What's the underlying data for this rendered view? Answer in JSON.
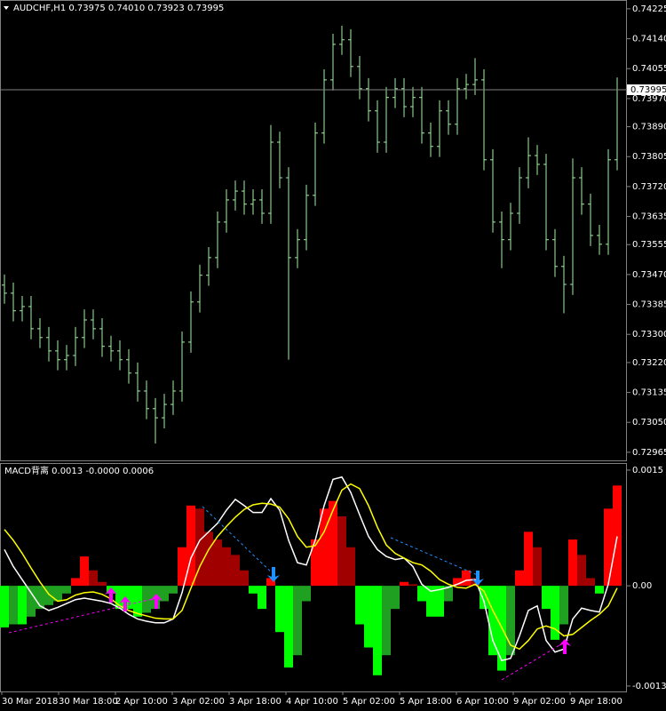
{
  "chart_data": [
    {
      "type": "ohlc",
      "title": "AUDCHF,H1  0.73975 0.74010 0.73923 0.73995",
      "color": "#a6eca6",
      "open": [
        0.7344,
        0.73417,
        0.73367,
        0.73379,
        0.73316,
        0.73291,
        0.73253,
        0.73228,
        0.7324,
        0.73291,
        0.73341,
        0.73316,
        0.73266,
        0.73253,
        0.73228,
        0.7319,
        0.73139,
        0.73089,
        0.73063,
        0.73101,
        0.73139,
        0.73278,
        0.73392,
        0.73468,
        0.73518,
        0.73619,
        0.73682,
        0.73707,
        0.7367,
        0.73682,
        0.73644,
        0.73846,
        0.73745,
        0.73518,
        0.73569,
        0.73695,
        0.73872,
        0.74023,
        0.74124,
        0.74137,
        0.74061,
        0.73998,
        0.73935,
        0.73846,
        0.73973,
        0.73998,
        0.73947,
        0.73973,
        0.73872,
        0.73834,
        0.73935,
        0.73897,
        0.73998,
        0.7401,
        0.74023,
        0.73796,
        0.73619,
        0.73569,
        0.73644,
        0.73745,
        0.73808,
        0.73783,
        0.73569,
        0.73493,
        0.73442,
        0.73745,
        0.7367,
        0.73581,
        0.73556,
        0.73796
      ],
      "high": [
        0.7347,
        0.73447,
        0.73409,
        0.73409,
        0.73346,
        0.73321,
        0.73283,
        0.7327,
        0.73321,
        0.73371,
        0.73371,
        0.73346,
        0.73296,
        0.73283,
        0.73258,
        0.7322,
        0.73169,
        0.73119,
        0.73131,
        0.73169,
        0.73308,
        0.73422,
        0.73498,
        0.73548,
        0.73649,
        0.73712,
        0.73737,
        0.73737,
        0.73712,
        0.73712,
        0.73895,
        0.73876,
        0.73775,
        0.73599,
        0.73725,
        0.73902,
        0.74053,
        0.74154,
        0.74177,
        0.74167,
        0.74091,
        0.74028,
        0.73965,
        0.74003,
        0.74028,
        0.74028,
        0.74003,
        0.74003,
        0.73902,
        0.73965,
        0.73965,
        0.74028,
        0.7404,
        0.74085,
        0.74053,
        0.73826,
        0.73649,
        0.73674,
        0.73775,
        0.7386,
        0.73838,
        0.73813,
        0.73599,
        0.73523,
        0.738,
        0.73775,
        0.737,
        0.73611,
        0.73826,
        0.7403
      ],
      "low": [
        0.73387,
        0.73337,
        0.73337,
        0.73286,
        0.73261,
        0.73223,
        0.73198,
        0.73198,
        0.7321,
        0.73261,
        0.73286,
        0.73236,
        0.73223,
        0.73198,
        0.7316,
        0.73109,
        0.73059,
        0.7299,
        0.73033,
        0.73071,
        0.73109,
        0.73248,
        0.73362,
        0.73438,
        0.73488,
        0.73589,
        0.73652,
        0.7364,
        0.7364,
        0.73614,
        0.73614,
        0.73715,
        0.73228,
        0.73488,
        0.73539,
        0.73665,
        0.73842,
        0.73993,
        0.74094,
        0.74031,
        0.73968,
        0.73905,
        0.73816,
        0.73816,
        0.73943,
        0.73917,
        0.73917,
        0.73842,
        0.73804,
        0.73804,
        0.73867,
        0.73867,
        0.73968,
        0.7398,
        0.73766,
        0.73589,
        0.73488,
        0.73539,
        0.73614,
        0.73715,
        0.73753,
        0.73539,
        0.73463,
        0.7336,
        0.73412,
        0.7364,
        0.73551,
        0.73526,
        0.73526,
        0.73766
      ],
      "close": [
        0.73417,
        0.73367,
        0.73379,
        0.73316,
        0.73291,
        0.73253,
        0.73228,
        0.7324,
        0.73291,
        0.73341,
        0.73316,
        0.73266,
        0.73253,
        0.73228,
        0.7319,
        0.73139,
        0.73089,
        0.73063,
        0.73101,
        0.73139,
        0.73278,
        0.73392,
        0.73468,
        0.73518,
        0.73619,
        0.73682,
        0.73707,
        0.7367,
        0.73682,
        0.73644,
        0.73846,
        0.73745,
        0.73518,
        0.73569,
        0.73695,
        0.73872,
        0.74023,
        0.74124,
        0.74137,
        0.74061,
        0.73998,
        0.73935,
        0.73846,
        0.73973,
        0.73998,
        0.73947,
        0.73973,
        0.73872,
        0.73834,
        0.73935,
        0.73897,
        0.73998,
        0.7401,
        0.74023,
        0.73796,
        0.73619,
        0.73569,
        0.73644,
        0.73745,
        0.73808,
        0.73783,
        0.73569,
        0.73493,
        0.73442,
        0.73745,
        0.7367,
        0.73581,
        0.73556,
        0.73796,
        0.73995
      ],
      "ylim": [
        0.72942,
        0.7425
      ],
      "yticks": [
        0.74225,
        {
          "value": 0.7414,
          "label": "0.74140"
        },
        0.74055,
        {
          "value": 0.7397,
          "label": "0.73970"
        },
        {
          "value": 0.7389,
          "label": "0.73890"
        },
        0.73805,
        {
          "value": 0.7372,
          "label": "0.73720"
        },
        0.73635,
        0.73555,
        {
          "value": 0.7347,
          "label": "0.73470"
        },
        0.73385,
        {
          "value": 0.733,
          "label": "0.73300"
        },
        {
          "value": 0.7322,
          "label": "0.73220"
        },
        0.73135,
        {
          "value": 0.7305,
          "label": "0.73050"
        },
        0.72965
      ],
      "current_price": 0.73995,
      "current_price_color": "#808080"
    },
    {
      "type": "macd",
      "title": "MACD背离 0.0013 -0.0000 0.0006",
      "histogram": [
        -0.00054,
        -0.0005,
        -0.0005,
        -0.0004,
        -0.0003,
        -0.00025,
        -0.0002,
        -0.0001,
        0.0001,
        0.00038,
        0.0002,
        5e-05,
        -0.0001,
        -0.0003,
        -0.0003,
        -0.0004,
        -0.00035,
        -0.0003,
        -0.0002,
        -0.0001,
        0.0005,
        0.00104,
        0.001,
        0.0007,
        0.0006,
        0.0005,
        0.0004,
        0.0002,
        -0.0001,
        -0.0003,
        0.0001,
        -0.0006,
        -0.00106,
        -0.0009,
        -0.0002,
        0.0006,
        0.001,
        0.0011,
        0.0009,
        0.0005,
        -0.0005,
        -0.0008,
        -0.00116,
        -0.0009,
        -0.0003,
        5e-05,
        2e-05,
        -0.0002,
        -0.0004,
        -0.0004,
        -0.0002,
        0.0001,
        0.0002,
        0.0001,
        -0.0003,
        -0.0009,
        -0.0011,
        -0.0009,
        0.0002,
        0.0007,
        0.0005,
        -0.0003,
        -0.0007,
        -0.0005,
        0.0006,
        0.0004,
        0.0001,
        -0.0001,
        0.001,
        0.0013
      ],
      "histogram_colors": {
        "positive_rising": "#ff0000",
        "positive_falling": "#a00000",
        "negative_falling": "#00ff00",
        "negative_rising": "#20a020"
      },
      "series": [
        {
          "color": "#ffffff",
          "values": [
            0.00047,
            0.00025,
            8e-05,
            -9e-05,
            -0.00026,
            -0.00032,
            -0.00028,
            -0.00023,
            -0.00018,
            -0.00016,
            -0.00018,
            -0.0002,
            -0.00023,
            -0.00029,
            -0.00037,
            -0.00043,
            -0.00046,
            -0.00048,
            -0.00048,
            -0.00043,
            -9e-05,
            0.00036,
            0.00059,
            0.0007,
            0.00081,
            0.00098,
            0.00112,
            0.00104,
            0.00095,
            0.00095,
            0.00113,
            0.00098,
            0.00059,
            0.0003,
            0.00027,
            0.00059,
            0.00104,
            0.00138,
            0.00141,
            0.00121,
            0.00092,
            0.00064,
            0.00047,
            0.00038,
            0.00034,
            0.00036,
            0.00025,
            2e-05,
            -7e-05,
            -5e-05,
            -2e-05,
            2e-05,
            7e-05,
            8e-05,
            -0.0002,
            -0.00071,
            -0.00097,
            -0.00094,
            -0.00065,
            -0.00032,
            -0.00026,
            -0.00071,
            -0.00086,
            -0.00082,
            -0.00043,
            -0.00029,
            -0.00032,
            -0.00034,
            2e-05,
            0.00064
          ]
        },
        {
          "color": "#ffff00",
          "values": [
            0.00073,
            0.00059,
            0.00042,
            0.00023,
            5e-05,
            -0.00011,
            -0.0002,
            -0.00018,
            -0.00012,
            -9e-05,
            -8e-05,
            -0.00011,
            -0.00017,
            -0.00026,
            -0.00032,
            -0.00036,
            -0.00039,
            -0.00042,
            -0.00043,
            -0.00043,
            -0.00032,
            -3e-05,
            0.00025,
            0.00047,
            0.00064,
            0.00077,
            0.00089,
            0.00099,
            0.00105,
            0.00107,
            0.00106,
            0.00102,
            0.00087,
            0.00064,
            0.0005,
            0.00052,
            0.0007,
            0.00098,
            0.00124,
            0.00132,
            0.00126,
            0.00104,
            0.00076,
            0.00053,
            0.00042,
            0.00036,
            0.0003,
            0.00027,
            0.00019,
            8e-05,
            2e-05,
            -2e-05,
            -3e-05,
            2e-05,
            -7e-05,
            -0.00032,
            -0.00054,
            -0.00077,
            -0.00082,
            -0.00071,
            -0.00056,
            -0.00052,
            -0.00056,
            -0.00065,
            -0.00063,
            -0.00054,
            -0.00045,
            -0.00037,
            -0.00026,
            -3e-05
          ]
        }
      ],
      "ylim": [
        -0.00137,
        0.00158
      ],
      "yticks": [
        0.0015,
        {
          "value": 0,
          "label": "0.00"
        },
        -0.0013
      ],
      "x_labels": [
        "30 Mar 2018",
        "30 Mar 18:00",
        "2 Apr 10:00",
        "3 Apr 02:00",
        "3 Apr 18:00",
        "4 Apr 10:00",
        "5 Apr 02:00",
        "5 Apr 18:00",
        "6 Apr 10:00",
        "9 Apr 02:00",
        "9 Apr 18:00"
      ]
    }
  ]
}
